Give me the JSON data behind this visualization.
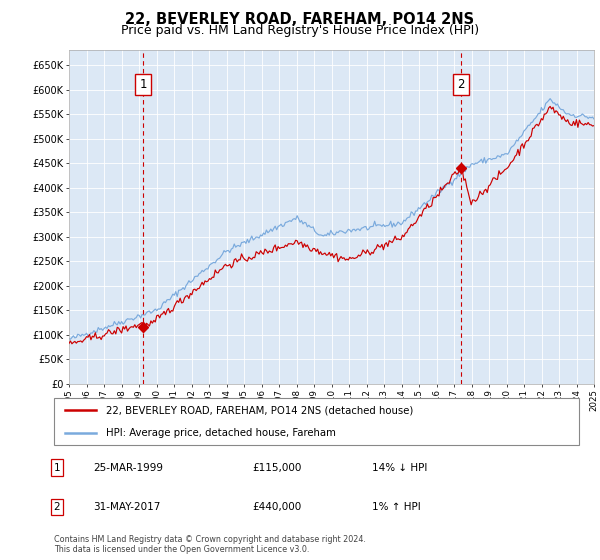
{
  "title": "22, BEVERLEY ROAD, FAREHAM, PO14 2NS",
  "subtitle": "Price paid vs. HM Land Registry's House Price Index (HPI)",
  "legend_line1": "22, BEVERLEY ROAD, FAREHAM, PO14 2NS (detached house)",
  "legend_line2": "HPI: Average price, detached house, Fareham",
  "annotation1_date": "25-MAR-1999",
  "annotation1_price": "£115,000",
  "annotation1_hpi": "14% ↓ HPI",
  "annotation2_date": "31-MAY-2017",
  "annotation2_price": "£440,000",
  "annotation2_hpi": "1% ↑ HPI",
  "footnote": "Contains HM Land Registry data © Crown copyright and database right 2024.\nThis data is licensed under the Open Government Licence v3.0.",
  "red_color": "#cc0000",
  "blue_color": "#7aaadd",
  "plot_bg": "#dce8f5",
  "ylim": [
    0,
    680000
  ],
  "yticks": [
    0,
    50000,
    100000,
    150000,
    200000,
    250000,
    300000,
    350000,
    400000,
    450000,
    500000,
    550000,
    600000,
    650000
  ],
  "sale1_year": 1999.23,
  "sale1_price": 115000,
  "sale2_year": 2017.41,
  "sale2_price": 440000,
  "title_fontsize": 10.5,
  "subtitle_fontsize": 9
}
